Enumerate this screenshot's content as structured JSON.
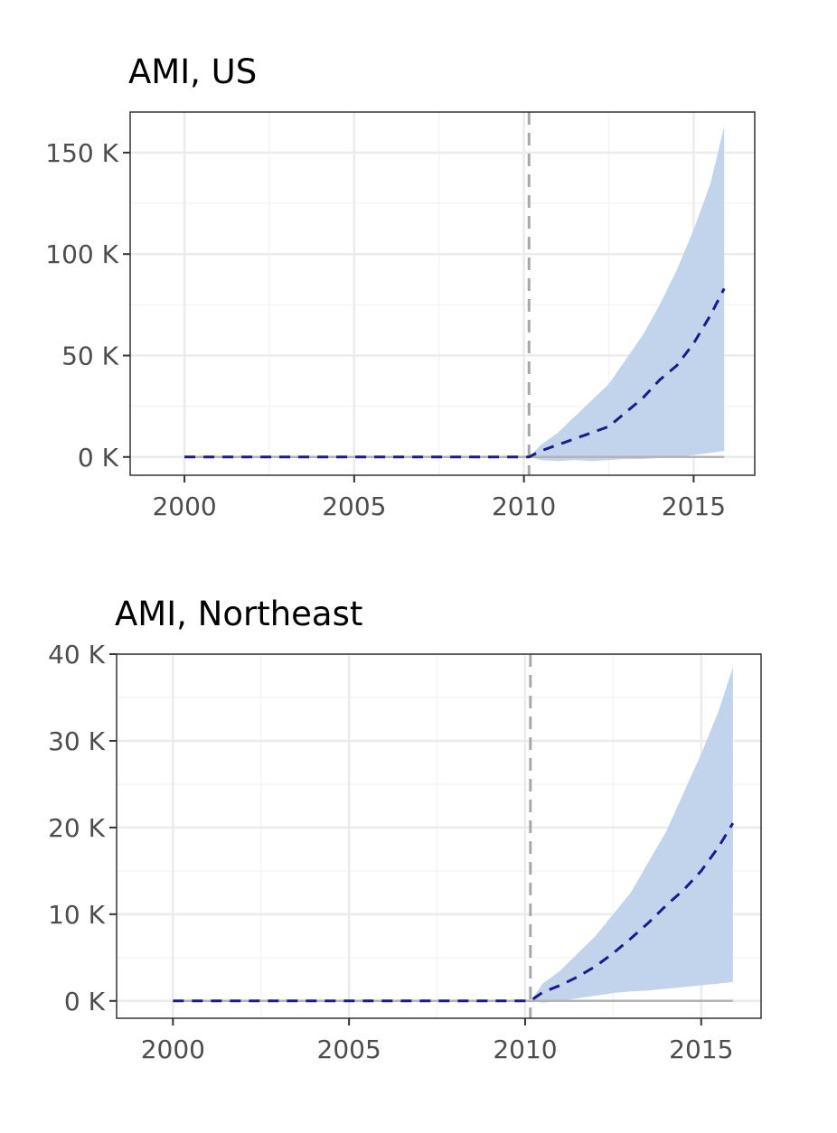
{
  "colors": {
    "ribbon": "#c2d3ec",
    "median_line": "#1a1a8c",
    "intervention_line": "#a8a8a8",
    "zero_line": "#b3b3b3",
    "grid_major": "#ebebeb",
    "grid_minor": "#f4f4f4",
    "panel_border": "#333333",
    "tick_text": "#4d4d4d"
  },
  "chart_data": [
    {
      "type": "area",
      "title": "AMI, US",
      "xlabel": "",
      "ylabel": "",
      "xlim": [
        1998.4,
        2016.8
      ],
      "ylim": [
        -9000,
        170000
      ],
      "x_ticks": [
        2000,
        2005,
        2010,
        2015
      ],
      "x_tick_labels": [
        "2000",
        "2005",
        "2010",
        "2015"
      ],
      "y_ticks": [
        0,
        50000,
        100000,
        150000
      ],
      "y_tick_labels": [
        "0 K",
        "50 K",
        "100 K",
        "150 K"
      ],
      "intervention_x": 2010.15,
      "grid": true,
      "series": [
        {
          "role": "median",
          "x": [
            2000,
            2010.15,
            2010.5,
            2011,
            2011.5,
            2012,
            2012.5,
            2013,
            2013.5,
            2014,
            2014.5,
            2015,
            2015.5,
            2015.9
          ],
          "values": [
            0,
            0,
            3000,
            6000,
            9000,
            12000,
            15000,
            22000,
            29000,
            38000,
            45000,
            56000,
            70000,
            83000
          ]
        },
        {
          "role": "interval_upper",
          "x": [
            2010.15,
            2010.5,
            2011,
            2011.5,
            2012,
            2012.5,
            2013,
            2013.5,
            2014,
            2014.5,
            2015,
            2015.5,
            2015.9
          ],
          "values": [
            0,
            6000,
            12000,
            20000,
            28000,
            36000,
            48000,
            60000,
            75000,
            92000,
            112000,
            135000,
            163000
          ]
        },
        {
          "role": "interval_lower",
          "x": [
            2010.15,
            2010.5,
            2011,
            2011.5,
            2012,
            2012.5,
            2013,
            2013.5,
            2014,
            2014.5,
            2015,
            2015.5,
            2015.9
          ],
          "values": [
            0,
            -1500,
            -2000,
            -1500,
            -2000,
            -1500,
            -1000,
            -1000,
            -500,
            0,
            1000,
            2000,
            3000
          ]
        }
      ]
    },
    {
      "type": "area",
      "title": "AMI, Northeast",
      "xlabel": "",
      "ylabel": "",
      "xlim": [
        1998.4,
        2016.7
      ],
      "ylim": [
        -2000,
        40000
      ],
      "x_ticks": [
        2000,
        2005,
        2010,
        2015
      ],
      "x_tick_labels": [
        "2000",
        "2005",
        "2010",
        "2015"
      ],
      "y_ticks": [
        0,
        10000,
        20000,
        30000,
        40000
      ],
      "y_tick_labels": [
        "0 K",
        "10 K",
        "20 K",
        "30 K",
        "40 K"
      ],
      "intervention_x": 2010.15,
      "grid": true,
      "series": [
        {
          "role": "median",
          "x": [
            2000,
            2010.15,
            2010.5,
            2011,
            2011.5,
            2012,
            2012.5,
            2013,
            2013.5,
            2014,
            2014.5,
            2015,
            2015.5,
            2015.9
          ],
          "values": [
            0,
            0,
            1000,
            1800,
            2800,
            4000,
            5500,
            7200,
            9000,
            11000,
            12800,
            15000,
            17800,
            20500
          ]
        },
        {
          "role": "interval_upper",
          "x": [
            2010.15,
            2010.5,
            2011,
            2011.5,
            2012,
            2012.5,
            2013,
            2013.5,
            2014,
            2014.5,
            2015,
            2015.5,
            2015.9
          ],
          "values": [
            0,
            2000,
            3500,
            5500,
            7500,
            10000,
            12500,
            16000,
            19500,
            24000,
            28500,
            33500,
            38500
          ]
        },
        {
          "role": "interval_lower",
          "x": [
            2010.15,
            2010.5,
            2011,
            2011.5,
            2012,
            2012.5,
            2013,
            2013.5,
            2014,
            2014.5,
            2015,
            2015.5,
            2015.9
          ],
          "values": [
            0,
            -200,
            0,
            300,
            600,
            900,
            1100,
            1200,
            1400,
            1600,
            1800,
            2000,
            2200
          ]
        }
      ]
    }
  ]
}
